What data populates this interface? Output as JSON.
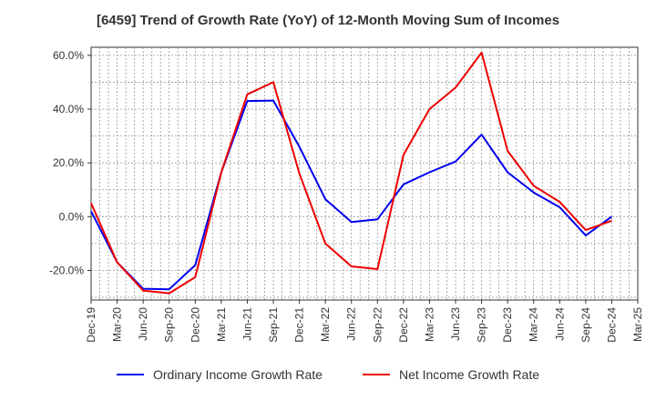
{
  "chart_data": {
    "type": "line",
    "title": "[6459]  Trend of Growth Rate (YoY) of 12-Month Moving Sum of Incomes",
    "xlabel": "",
    "ylabel": "",
    "x_ticks": [
      "Dec-19",
      "Mar-20",
      "Jun-20",
      "Sep-20",
      "Dec-20",
      "Mar-21",
      "Jun-21",
      "Sep-21",
      "Dec-21",
      "Mar-22",
      "Jun-22",
      "Sep-22",
      "Dec-22",
      "Mar-23",
      "Jun-23",
      "Sep-23",
      "Dec-23",
      "Mar-24",
      "Jun-24",
      "Sep-24",
      "Dec-24",
      "Mar-25"
    ],
    "y_ticks": [
      "60.0%",
      "40.0%",
      "20.0%",
      "0.0%",
      "-20.0%"
    ],
    "y_tick_values": [
      60,
      40,
      20,
      0,
      -20
    ],
    "ylim": [
      -31,
      63
    ],
    "grid": true,
    "legend_position": "bottom",
    "series": [
      {
        "name": "Ordinary Income Growth Rate",
        "color": "#0000ee",
        "values": [
          2,
          -17,
          -26.8,
          -27,
          -18,
          16.5,
          43,
          43.2,
          26,
          6.5,
          -2,
          -1,
          12,
          16.5,
          20.5,
          30.5,
          16.5,
          9,
          3.5,
          -7,
          0
        ]
      },
      {
        "name": "Net Income Growth Rate",
        "color": "#ee0000",
        "values": [
          5,
          -17,
          -27.5,
          -28.5,
          -22.5,
          16.5,
          45.5,
          50,
          16,
          -10,
          -18.5,
          -19.5,
          23,
          40,
          48,
          61,
          24.5,
          11.5,
          5.5,
          -5,
          -1.5
        ]
      }
    ]
  }
}
